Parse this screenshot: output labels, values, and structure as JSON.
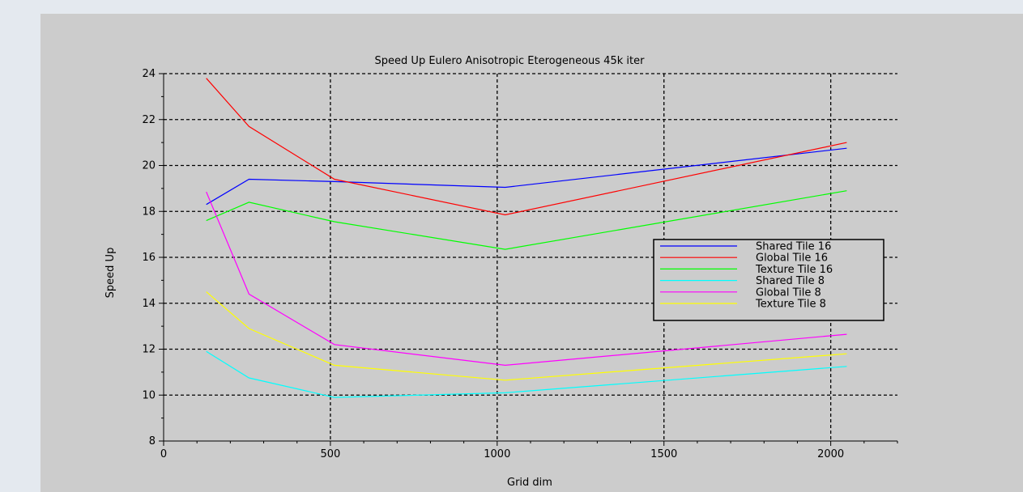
{
  "page": {
    "background": "#e4e9ef",
    "figure_background": "#cccccc"
  },
  "chart_data": {
    "type": "line",
    "title": "Speed Up Eulero Anisotropic Eterogeneous 45k iter",
    "xlabel": "Grid dim",
    "ylabel": "Speed Up",
    "xlim": [
      0,
      2200
    ],
    "ylim": [
      8,
      24
    ],
    "xticks": [
      0,
      500,
      1000,
      1500,
      2000
    ],
    "yticks": [
      8,
      10,
      12,
      14,
      16,
      18,
      20,
      22,
      24
    ],
    "grid": true,
    "legend_position": "right",
    "x": [
      128,
      256,
      512,
      1024,
      2048
    ],
    "series": [
      {
        "name": "Shared Tile 16",
        "color": "#0000ff",
        "values": [
          18.3,
          19.4,
          19.3,
          19.05,
          20.75
        ]
      },
      {
        "name": "Global Tile 16",
        "color": "#ff0000",
        "values": [
          23.8,
          21.7,
          19.4,
          17.85,
          21.0
        ]
      },
      {
        "name": "Texture Tile 16",
        "color": "#00ff00",
        "values": [
          17.6,
          18.4,
          17.55,
          16.35,
          18.9
        ]
      },
      {
        "name": "Shared Tile 8",
        "color": "#00ffff",
        "values": [
          11.9,
          10.75,
          9.9,
          10.1,
          11.25
        ]
      },
      {
        "name": "Global Tile 8",
        "color": "#ff00ff",
        "values": [
          18.85,
          14.4,
          12.2,
          11.3,
          12.65
        ]
      },
      {
        "name": "Texture Tile 8",
        "color": "#ffff00",
        "values": [
          14.5,
          12.9,
          11.3,
          10.65,
          11.8
        ]
      }
    ]
  }
}
